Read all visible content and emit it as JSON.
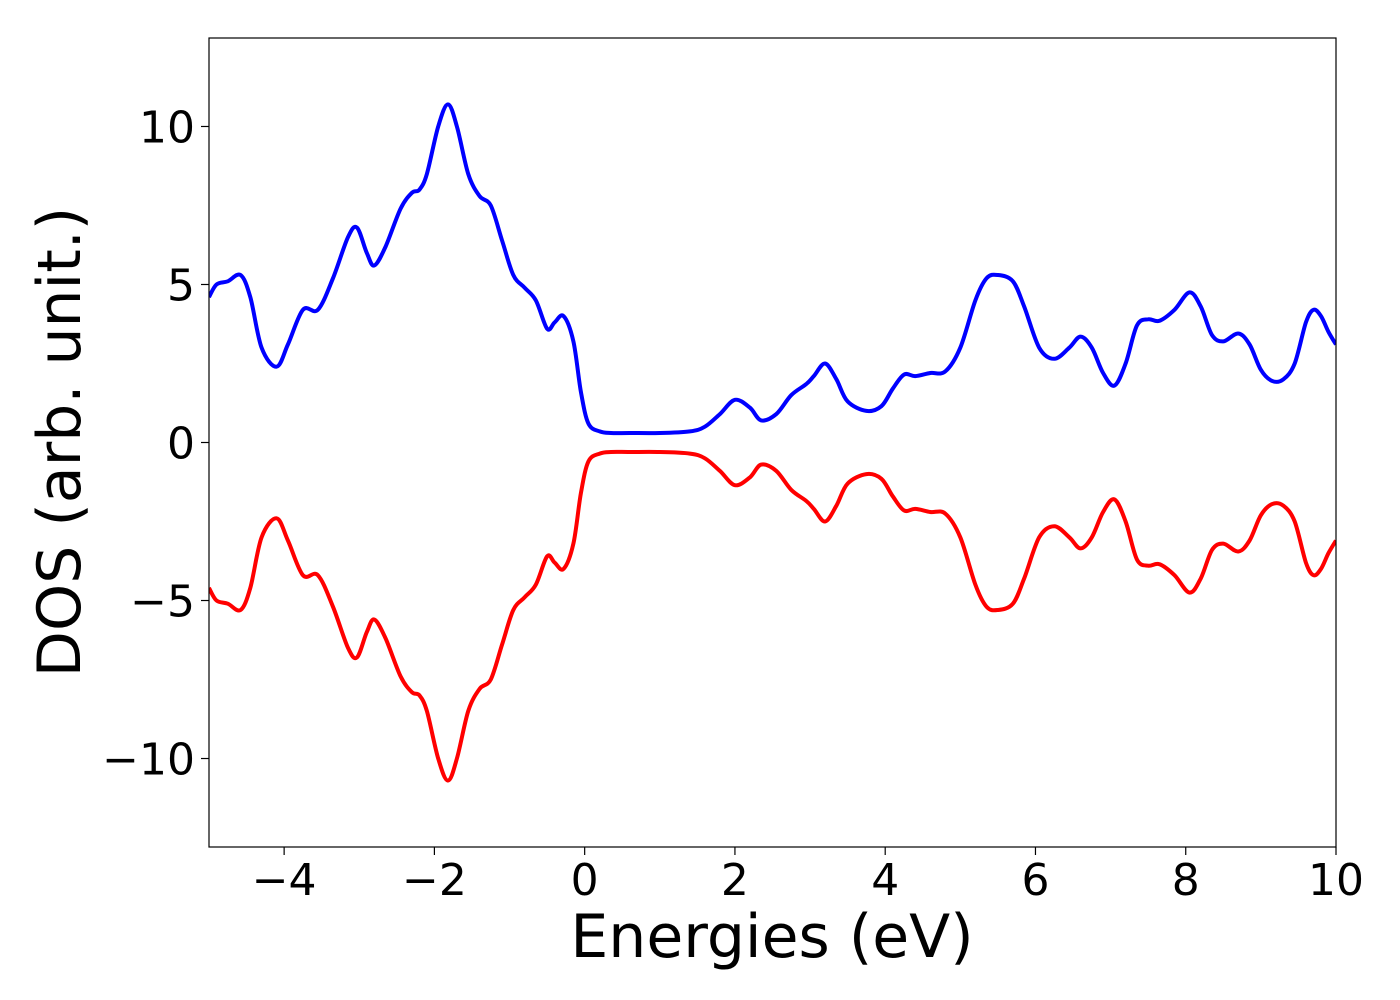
{
  "chart_data": {
    "type": "line",
    "title": "",
    "xlabel": "Energies (eV)",
    "ylabel": "DOS (arb. unit.)",
    "xlim": [
      -5,
      10
    ],
    "ylim": [
      -12.8,
      12.8
    ],
    "xticks": [
      -4,
      -2,
      0,
      2,
      4,
      6,
      8,
      10
    ],
    "xtick_labels": [
      "−4",
      "−2",
      "0",
      "2",
      "4",
      "6",
      "8",
      "10"
    ],
    "yticks": [
      10,
      5,
      0,
      -5,
      -10
    ],
    "ytick_labels": [
      "10",
      "5",
      "0",
      "−5",
      "−10"
    ],
    "grid": false,
    "legend": "none",
    "series": [
      {
        "color": "#0000ff",
        "x": [
          -5.0,
          -4.9,
          -4.75,
          -4.58,
          -4.45,
          -4.3,
          -4.1,
          -3.95,
          -3.75,
          -3.55,
          -3.35,
          -3.15,
          -3.03,
          -2.9,
          -2.8,
          -2.65,
          -2.45,
          -2.3,
          -2.2,
          -2.1,
          -1.95,
          -1.82,
          -1.7,
          -1.55,
          -1.4,
          -1.25,
          -1.1,
          -0.95,
          -0.8,
          -0.65,
          -0.5,
          -0.4,
          -0.28,
          -0.15,
          -0.05,
          0.05,
          0.2,
          0.35,
          0.6,
          1.0,
          1.4,
          1.6,
          1.8,
          2.0,
          2.2,
          2.35,
          2.55,
          2.75,
          2.95,
          3.05,
          3.2,
          3.35,
          3.5,
          3.75,
          3.95,
          4.1,
          4.25,
          4.4,
          4.6,
          4.8,
          5.0,
          5.2,
          5.35,
          5.5,
          5.7,
          5.85,
          6.05,
          6.25,
          6.45,
          6.6,
          6.75,
          6.9,
          7.05,
          7.2,
          7.35,
          7.5,
          7.65,
          7.85,
          8.05,
          8.2,
          8.35,
          8.5,
          8.7,
          8.85,
          9.0,
          9.15,
          9.3,
          9.45,
          9.6,
          9.7,
          9.8,
          9.9,
          10.0
        ],
        "y": [
          4.6,
          5.0,
          5.1,
          5.3,
          4.6,
          3.0,
          2.4,
          3.1,
          4.2,
          4.2,
          5.2,
          6.5,
          6.8,
          6.0,
          5.6,
          6.2,
          7.4,
          7.9,
          8.0,
          8.5,
          10.0,
          10.7,
          10.0,
          8.5,
          7.8,
          7.5,
          6.4,
          5.3,
          4.9,
          4.5,
          3.6,
          3.8,
          4.0,
          3.2,
          1.6,
          0.6,
          0.35,
          0.3,
          0.3,
          0.3,
          0.35,
          0.5,
          0.9,
          1.35,
          1.1,
          0.7,
          0.9,
          1.5,
          1.85,
          2.1,
          2.5,
          2.0,
          1.3,
          1.0,
          1.15,
          1.7,
          2.15,
          2.1,
          2.2,
          2.25,
          3.0,
          4.5,
          5.2,
          5.3,
          5.1,
          4.3,
          3.0,
          2.65,
          3.0,
          3.35,
          3.0,
          2.2,
          1.8,
          2.5,
          3.7,
          3.9,
          3.85,
          4.2,
          4.75,
          4.3,
          3.4,
          3.2,
          3.45,
          3.1,
          2.3,
          1.95,
          2.0,
          2.5,
          3.8,
          4.2,
          4.0,
          3.5,
          3.1
        ]
      },
      {
        "color": "#ff0000",
        "x": [
          -5.0,
          -4.9,
          -4.75,
          -4.58,
          -4.45,
          -4.3,
          -4.1,
          -3.95,
          -3.75,
          -3.55,
          -3.35,
          -3.15,
          -3.03,
          -2.9,
          -2.8,
          -2.65,
          -2.45,
          -2.3,
          -2.2,
          -2.1,
          -1.95,
          -1.82,
          -1.7,
          -1.55,
          -1.4,
          -1.25,
          -1.1,
          -0.95,
          -0.8,
          -0.65,
          -0.5,
          -0.4,
          -0.28,
          -0.15,
          -0.05,
          0.05,
          0.2,
          0.35,
          0.6,
          1.0,
          1.4,
          1.6,
          1.8,
          2.0,
          2.2,
          2.35,
          2.55,
          2.75,
          2.95,
          3.05,
          3.2,
          3.35,
          3.5,
          3.75,
          3.95,
          4.1,
          4.25,
          4.4,
          4.6,
          4.8,
          5.0,
          5.2,
          5.35,
          5.5,
          5.7,
          5.85,
          6.05,
          6.25,
          6.45,
          6.6,
          6.75,
          6.9,
          7.05,
          7.2,
          7.35,
          7.5,
          7.65,
          7.85,
          8.05,
          8.2,
          8.35,
          8.5,
          8.7,
          8.85,
          9.0,
          9.15,
          9.3,
          9.45,
          9.6,
          9.7,
          9.8,
          9.9,
          10.0
        ],
        "y": [
          -4.6,
          -5.0,
          -5.1,
          -5.3,
          -4.6,
          -3.0,
          -2.4,
          -3.1,
          -4.2,
          -4.2,
          -5.2,
          -6.5,
          -6.8,
          -6.0,
          -5.6,
          -6.2,
          -7.4,
          -7.9,
          -8.0,
          -8.5,
          -10.0,
          -10.7,
          -10.0,
          -8.5,
          -7.8,
          -7.5,
          -6.4,
          -5.3,
          -4.9,
          -4.5,
          -3.6,
          -3.8,
          -4.0,
          -3.2,
          -1.6,
          -0.6,
          -0.35,
          -0.3,
          -0.3,
          -0.3,
          -0.35,
          -0.5,
          -0.9,
          -1.35,
          -1.1,
          -0.7,
          -0.9,
          -1.5,
          -1.85,
          -2.1,
          -2.5,
          -2.0,
          -1.3,
          -1.0,
          -1.15,
          -1.7,
          -2.15,
          -2.1,
          -2.2,
          -2.25,
          -3.0,
          -4.5,
          -5.2,
          -5.3,
          -5.1,
          -4.3,
          -3.0,
          -2.65,
          -3.0,
          -3.35,
          -3.0,
          -2.2,
          -1.8,
          -2.5,
          -3.7,
          -3.9,
          -3.85,
          -4.2,
          -4.75,
          -4.3,
          -3.4,
          -3.2,
          -3.45,
          -3.1,
          -2.3,
          -1.95,
          -2.0,
          -2.5,
          -3.8,
          -4.2,
          -4.0,
          -3.5,
          -3.1
        ]
      }
    ]
  }
}
